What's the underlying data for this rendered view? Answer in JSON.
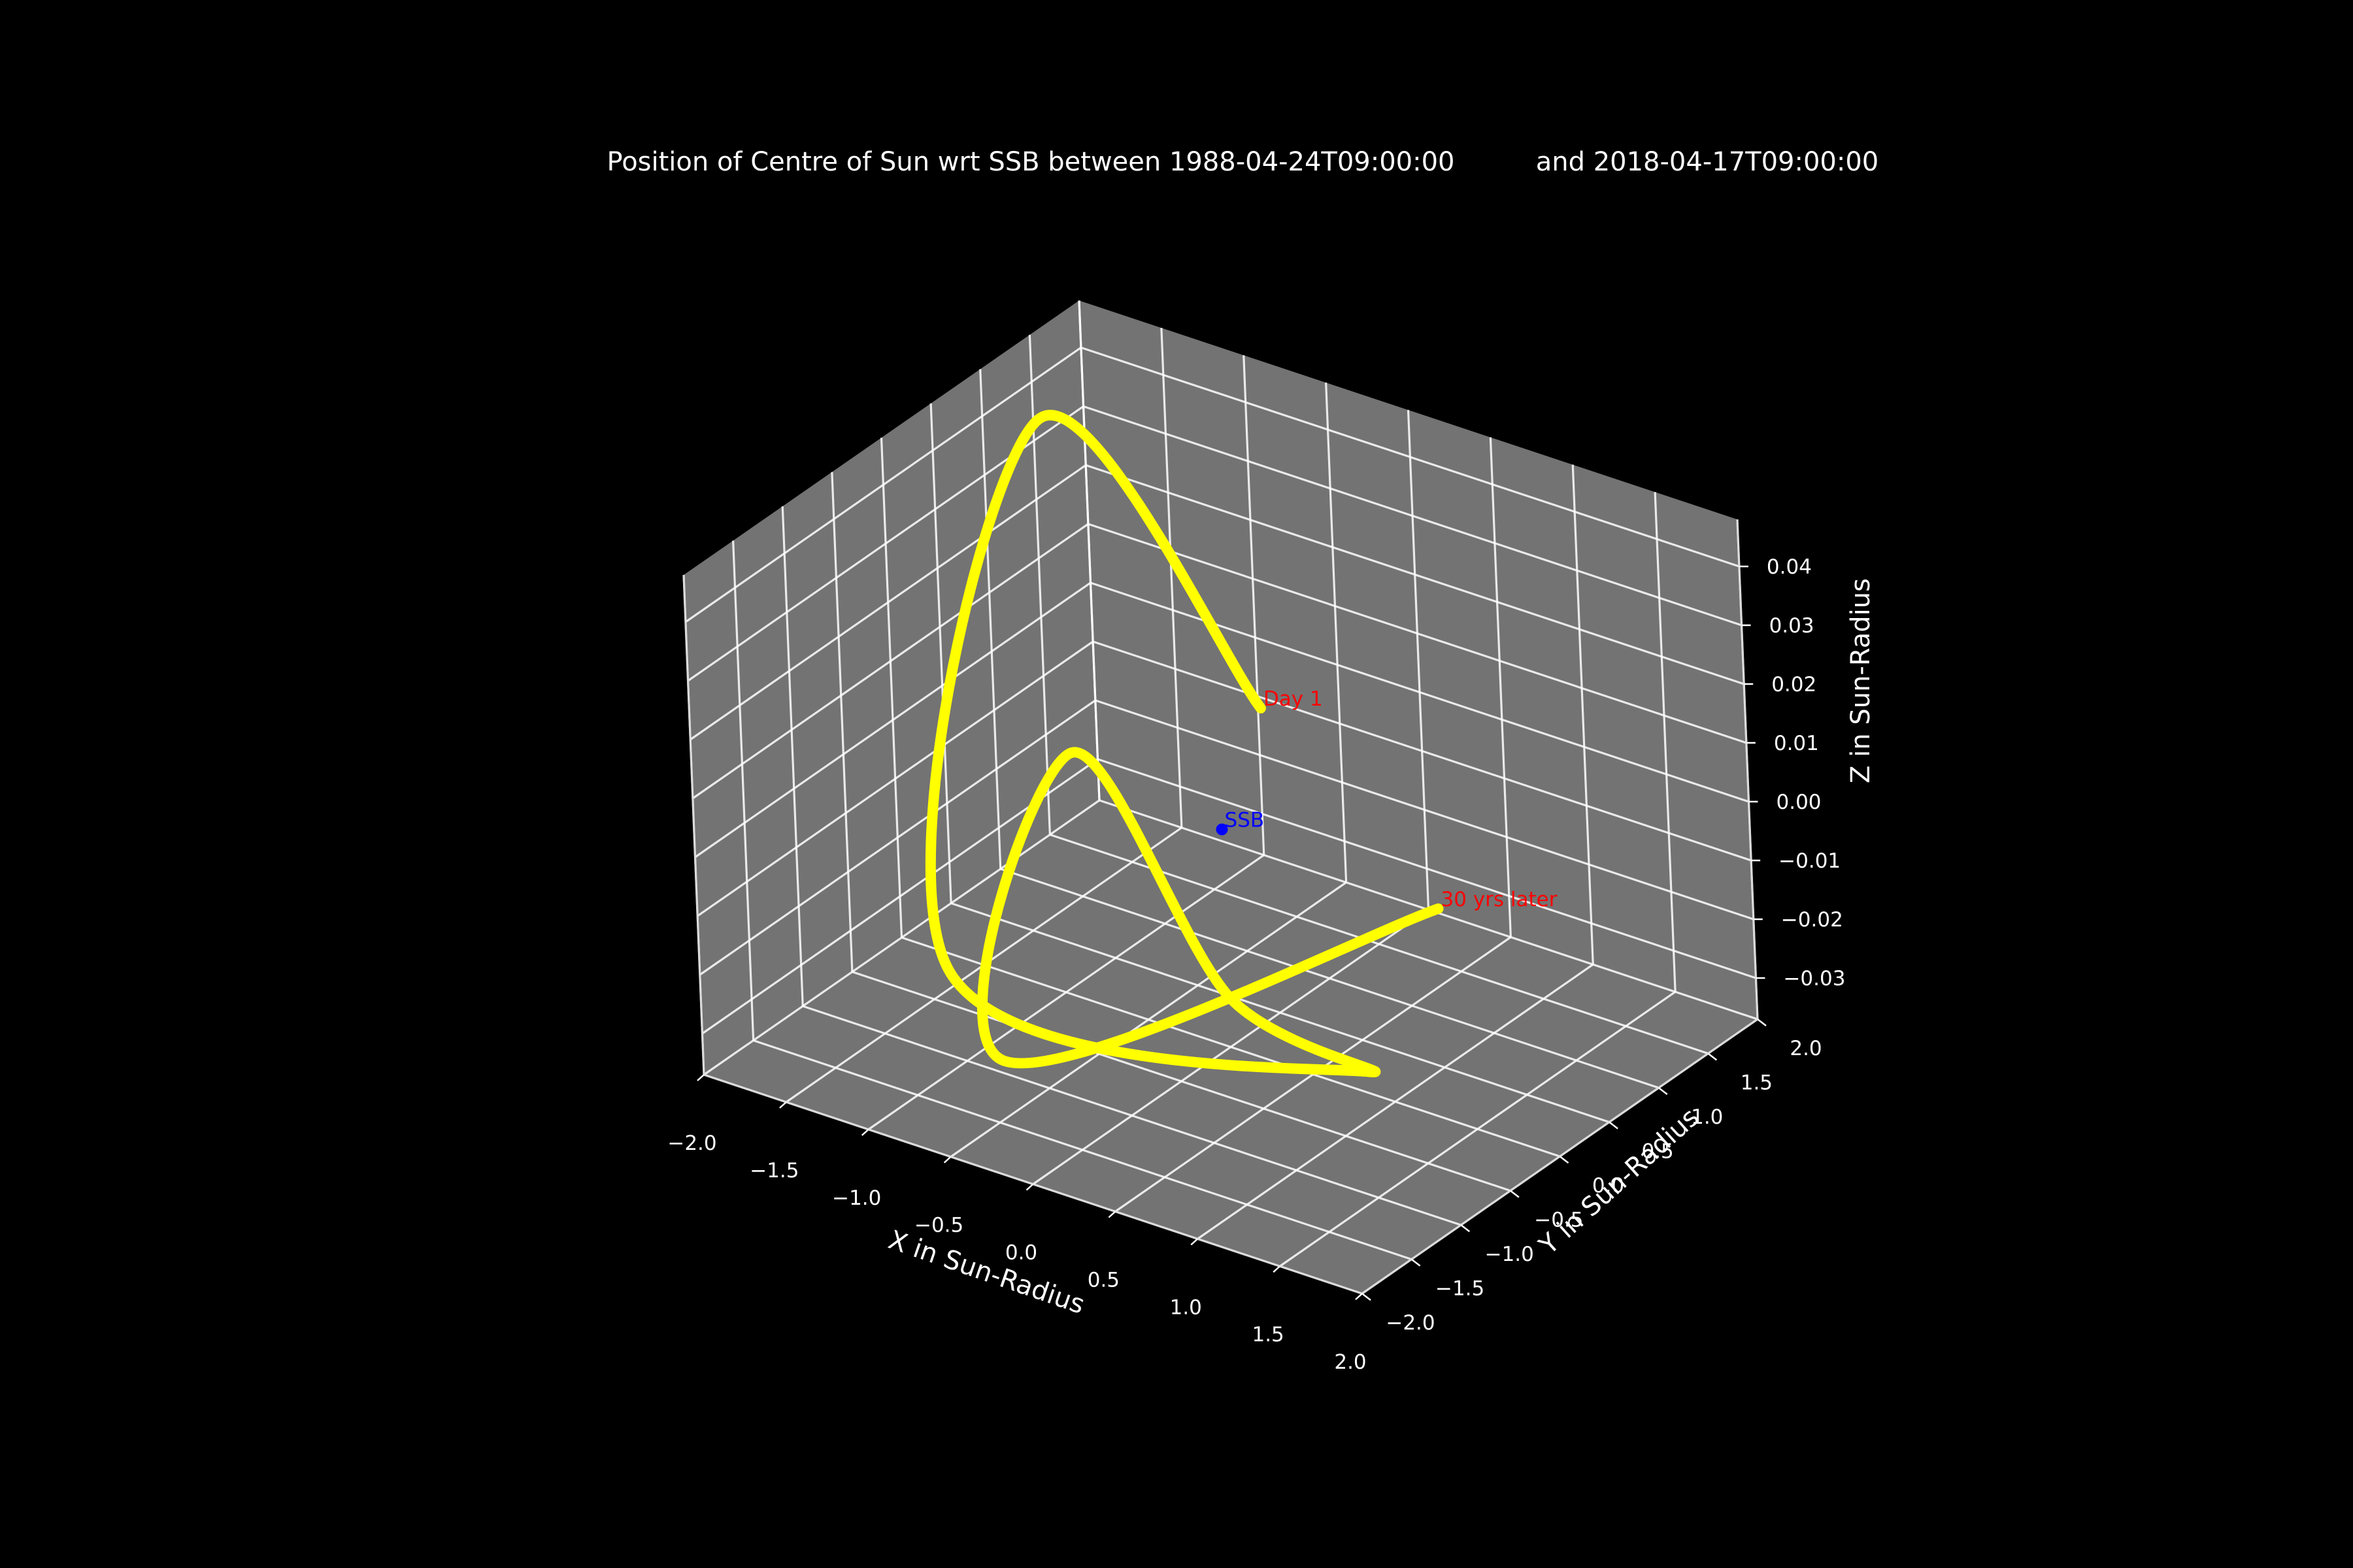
{
  "chart_data": {
    "type": "line",
    "projection": "3d",
    "title_left": "Position of Centre of Sun wrt SSB between 1988-04-24T09:00:00",
    "title_right": "and 2018-04-17T09:00:00",
    "xlabel": "X in Sun-Radius",
    "ylabel": "Y in Sun-Radius",
    "zlabel": "Z in Sun-Radius",
    "xlim": [
      -2.0,
      2.0
    ],
    "ylim": [
      -2.0,
      2.0
    ],
    "zlim": [
      -0.037,
      0.048
    ],
    "x_ticks": [
      "−2.0",
      "−1.5",
      "−1.0",
      "−0.5",
      "0.0",
      "0.5",
      "1.0",
      "1.5",
      "2.0"
    ],
    "y_ticks": [
      "−2.0",
      "−1.5",
      "−1.0",
      "−0.5",
      "0.0",
      "0.5",
      "1.0",
      "1.5",
      "2.0"
    ],
    "z_ticks": [
      "−0.03",
      "−0.02",
      "−0.01",
      "0.00",
      "0.01",
      "0.02",
      "0.03",
      "0.04"
    ],
    "grid": true,
    "colors": {
      "background": "#000000",
      "pane": "#737373",
      "grid": "#ffffff",
      "text": "#ffffff",
      "series": "#ffff00",
      "annotation": "#ff0000",
      "ssb": "#0000ff"
    },
    "series": [
      {
        "color": "#ffff00",
        "points": [
          [
            -0.2,
            0.75,
            0.01
          ],
          [
            -1.75,
            1.15,
            0.04
          ],
          [
            -0.85,
            -1.4,
            -0.015
          ],
          [
            0.95,
            -0.2,
            -0.03
          ],
          [
            0.38,
            -0.6,
            -0.018
          ],
          [
            -1.0,
            0.15,
            0.002
          ],
          [
            -0.25,
            -1.85,
            -0.02
          ],
          [
            1.0,
            0.5,
            -0.01
          ]
        ]
      }
    ],
    "annotations": [
      {
        "text": "Day 1",
        "x": -0.2,
        "y": 0.75,
        "z": 0.01,
        "color": "#ff0000"
      },
      {
        "text": "30 yrs later",
        "x": 1.0,
        "y": 0.5,
        "z": -0.01,
        "color": "#ff0000"
      },
      {
        "text": "SSB",
        "x": 0.0,
        "y": 0.0,
        "z": 0.0,
        "color": "#0000ff"
      }
    ]
  }
}
